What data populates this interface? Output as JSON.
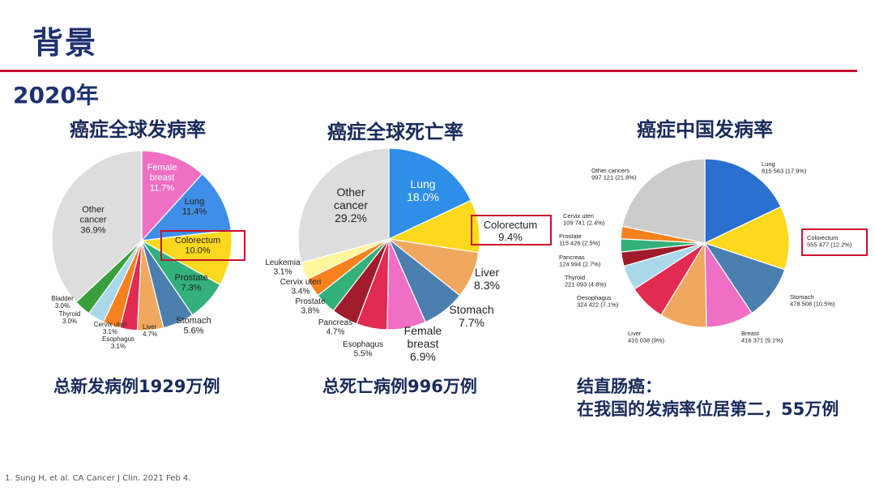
{
  "header": {
    "title": "背景",
    "year": "2020年"
  },
  "charts": {
    "incidence": {
      "title": "癌症全球发病率",
      "summary": "总新发病例1929万例",
      "chart_data": {
        "type": "pie",
        "title": "癌症全球发病率",
        "slices": [
          {
            "name": "Female breast",
            "label": "Female\nbreast\n11.7%",
            "value": 11.7,
            "color": "#ef6fc4"
          },
          {
            "name": "Lung",
            "label": "Lung\n11.4%",
            "value": 11.4,
            "color": "#3f8ee8"
          },
          {
            "name": "Colorectum",
            "label": "Colorectum\n10.0%",
            "value": 10.0,
            "color": "#fcd81e",
            "highlight": true
          },
          {
            "name": "Prostate",
            "label": "Prostate\n7.3%",
            "value": 7.3,
            "color": "#34b07a"
          },
          {
            "name": "Stomach",
            "label": "Stomach\n5.6%",
            "value": 5.6,
            "color": "#4a7fb0"
          },
          {
            "name": "Liver",
            "label": "Liver\n4.7%",
            "value": 4.7,
            "color": "#f0a860"
          },
          {
            "name": "Esophagus",
            "label": "Esophagus\n3.1%",
            "value": 3.1,
            "color": "#e22b52"
          },
          {
            "name": "Cervix uteri",
            "label": "Cervix uteri\n3.1%",
            "value": 3.1,
            "color": "#f5821f"
          },
          {
            "name": "Thyroid",
            "label": "Thyroid\n3.0%",
            "value": 3.0,
            "color": "#a8d8ea"
          },
          {
            "name": "Bladder",
            "label": "Bladder\n3.0%",
            "value": 3.0,
            "color": "#3a9e3a"
          },
          {
            "name": "Other cancer",
            "label": "Other\ncancer\n36.9%",
            "value": 36.9,
            "color": "#dddddd"
          }
        ]
      }
    },
    "mortality": {
      "title": "癌症全球死亡率",
      "summary": "总死亡病例996万例",
      "chart_data": {
        "type": "pie",
        "title": "癌症全球死亡率",
        "slices": [
          {
            "name": "Lung",
            "label": "Lung\n18.0%",
            "value": 18.0,
            "color": "#2e8ee8"
          },
          {
            "name": "Colorectum",
            "label": "Colorectum\n9.4%",
            "value": 9.4,
            "color": "#fcd81e",
            "highlight": true
          },
          {
            "name": "Liver",
            "label": "Liver\n8.3%",
            "value": 8.3,
            "color": "#f0a860"
          },
          {
            "name": "Stomach",
            "label": "Stomach\n7.7%",
            "value": 7.7,
            "color": "#4a7fb0"
          },
          {
            "name": "Female breast",
            "label": "Female\nbreast\n6.9%",
            "value": 6.9,
            "color": "#ef6fc4"
          },
          {
            "name": "Esophagus",
            "label": "Esophagus\n5.5%",
            "value": 5.5,
            "color": "#e22b52"
          },
          {
            "name": "Pancreas",
            "label": "Pancreas\n4.7%",
            "value": 4.7,
            "color": "#a01c2c"
          },
          {
            "name": "Prostate",
            "label": "Prostate\n3.8%",
            "value": 3.8,
            "color": "#34b07a"
          },
          {
            "name": "Cervix uteri",
            "label": "Cervix uteri\n3.4%",
            "value": 3.4,
            "color": "#f5821f"
          },
          {
            "name": "Leukemia",
            "label": "Leukemia\n3.1%",
            "value": 3.1,
            "color": "#fff59a"
          },
          {
            "name": "Other cancer",
            "label": "Other\ncancer\n29.2%",
            "value": 29.2,
            "color": "#dddddd"
          }
        ]
      }
    },
    "china": {
      "title": "癌症中国发病率",
      "summary_line1": "结直肠癌：",
      "summary_line2": "在我国的发病率位居第二，55万例",
      "chart_data": {
        "type": "pie",
        "title": "癌症中国发病率",
        "slices": [
          {
            "name": "Lung",
            "label": "Lung\n815 563 (17.9%)",
            "value": 17.9,
            "color": "#2b6fd0"
          },
          {
            "name": "Colorectum",
            "label": "Colorectum\n555 477 (12.2%)",
            "value": 12.2,
            "color": "#fcd81e",
            "highlight": true
          },
          {
            "name": "Stomach",
            "label": "Stomach\n478 508 (10.5%)",
            "value": 10.5,
            "color": "#4a7fb0"
          },
          {
            "name": "Breast",
            "label": "Breast\n416 371 (9.1%)",
            "value": 9.1,
            "color": "#ef6fc4"
          },
          {
            "name": "Liver",
            "label": "Liver\n410 038 (9%)",
            "value": 9.0,
            "color": "#f0a860"
          },
          {
            "name": "Oesophagus",
            "label": "Oesophagus\n324 422 (7.1%)",
            "value": 7.1,
            "color": "#e22b52"
          },
          {
            "name": "Thyroid",
            "label": "Thyroid\n221 093 (4.8%)",
            "value": 4.8,
            "color": "#a8d8ea"
          },
          {
            "name": "Pancreas",
            "label": "Pancreas\n124 994 (2.7%)",
            "value": 2.7,
            "color": "#a01c2c"
          },
          {
            "name": "Prostate",
            "label": "Prostate\n115 426 (2.5%)",
            "value": 2.5,
            "color": "#34b07a"
          },
          {
            "name": "Cervix uteri",
            "label": "Cervix uteri\n109 741 (2.4%)",
            "value": 2.4,
            "color": "#f5821f"
          },
          {
            "name": "Other cancers",
            "label": "Other cancers\n997 121 (21.8%)",
            "value": 21.8,
            "color": "#cccccc"
          }
        ]
      }
    }
  },
  "footnote": "1. Sung H, et al. CA Cancer J Clin. 2021 Feb 4."
}
